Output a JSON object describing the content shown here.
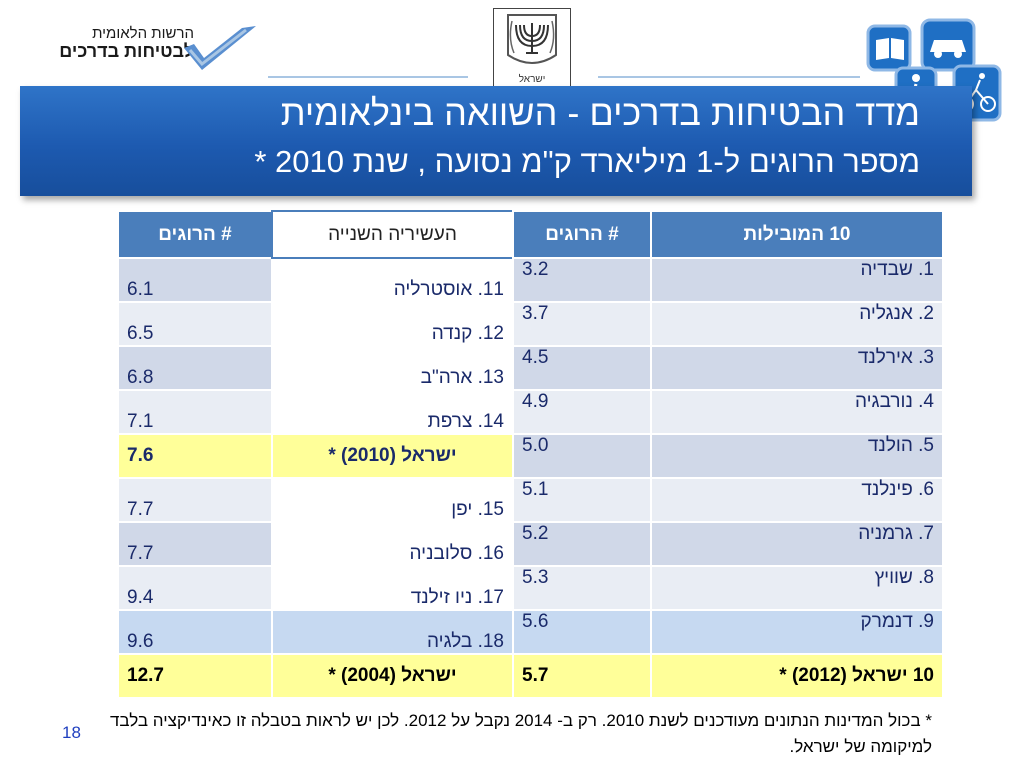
{
  "logo": {
    "line1": "הרשות הלאומית",
    "line2": "לבטיחות בדרכים"
  },
  "emblem": {
    "caption": "ישראל"
  },
  "header": {
    "title": "מדד הבטיחות בדרכים - השוואה בינלאומית",
    "subtitle": "מספר הרוגים ל-1 מיליארד ק\"מ נסועה , שנת 2010 *"
  },
  "table": {
    "headers": [
      "10 המובילות",
      "# הרוגים",
      "העשיריה השנייה",
      "# הרוגים"
    ],
    "rows": [
      {
        "left_country": "1. שבדיה",
        "left_value": "3.2",
        "right_country": "11. אוסטרליה",
        "right_value": "6.1"
      },
      {
        "left_country": "2. אנגליה",
        "left_value": "3.7",
        "right_country": "12. קנדה",
        "right_value": "6.5"
      },
      {
        "left_country": "3. אירלנד",
        "left_value": "4.5",
        "right_country": "13. ארה\"ב",
        "right_value": "6.8"
      },
      {
        "left_country": "4. נורבגיה",
        "left_value": "4.9",
        "right_country": "14. צרפת",
        "right_value": "7.1"
      },
      {
        "left_country": "5. הולנד",
        "left_value": "5.0",
        "right_country": "ישראל (2010) *",
        "right_value": "7.6"
      },
      {
        "left_country": "6. פינלנד",
        "left_value": "5.1",
        "right_country": "15. יפן",
        "right_value": "7.7"
      },
      {
        "left_country": "7. גרמניה",
        "left_value": "5.2",
        "right_country": "16. סלובניה",
        "right_value": "7.7"
      },
      {
        "left_country": "8. שוויץ",
        "left_value": "5.3",
        "right_country": "17. ניו זילנד",
        "right_value": "9.4"
      },
      {
        "left_country": "9. דנמרק",
        "left_value": "5.6",
        "right_country": "18. בלגיה",
        "right_value": "9.6"
      },
      {
        "left_country": "10 ישראל (2012) *",
        "left_value": "5.7",
        "right_country": "ישראל (2004) *",
        "right_value": "12.7"
      }
    ]
  },
  "footnote": "* בכול המדינות הנתונים מעודכנים לשנת 2010. רק ב- 2014 נקבל על 2012. לכן יש לראות בטבלה זו  כאינדיקציה בלבד למיקומה של ישראל.",
  "page_number": "18",
  "colors": {
    "header_blue": "#1d5ab0",
    "table_header": "#4a7ebb",
    "highlight_yellow": "#ffff99",
    "row_dark": "#d0d8e8",
    "row_light": "#e9edf4"
  }
}
